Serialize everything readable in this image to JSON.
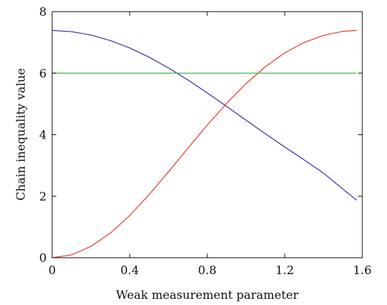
{
  "chart_data": {
    "type": "line",
    "title": "",
    "xlabel": "Weak measurement parameter",
    "ylabel": "Chain inequality value",
    "xlim": [
      0,
      1.6
    ],
    "ylim": [
      0,
      8
    ],
    "x_ticks": [
      0,
      0.4,
      0.8,
      1.2,
      1.6
    ],
    "x_tick_labels": [
      "0",
      "0.4",
      "0.8",
      "1.2",
      "1.6"
    ],
    "y_ticks": [
      0,
      2,
      4,
      6,
      8
    ],
    "y_tick_labels": [
      "0",
      "2",
      "4",
      "6",
      "8"
    ],
    "grid": false,
    "legend": "none",
    "series": [
      {
        "color": "#2b2ba0",
        "x": [
          0,
          0.1,
          0.2,
          0.3,
          0.4,
          0.5,
          0.6,
          0.7,
          0.8,
          0.9,
          1.0,
          1.1,
          1.2,
          1.3,
          1.4,
          1.5,
          1.5708
        ],
        "y": [
          7.39,
          7.35,
          7.24,
          7.06,
          6.82,
          6.52,
          6.17,
          5.78,
          5.36,
          4.92,
          4.47,
          4.03,
          3.6,
          3.18,
          2.75,
          2.23,
          1.87
        ]
      },
      {
        "color": "#e8311f",
        "x": [
          0,
          0.1,
          0.2,
          0.3,
          0.4,
          0.5,
          0.6,
          0.7,
          0.8,
          0.9,
          1.0,
          1.1,
          1.2,
          1.3,
          1.4,
          1.5,
          1.5708
        ],
        "y": [
          0,
          0.09,
          0.37,
          0.8,
          1.37,
          2.05,
          2.79,
          3.56,
          4.31,
          5.02,
          5.66,
          6.21,
          6.66,
          7.0,
          7.23,
          7.36,
          7.39
        ]
      },
      {
        "color": "#3cb043",
        "x": [
          0,
          1.5708
        ],
        "y": [
          6,
          6
        ]
      }
    ]
  }
}
